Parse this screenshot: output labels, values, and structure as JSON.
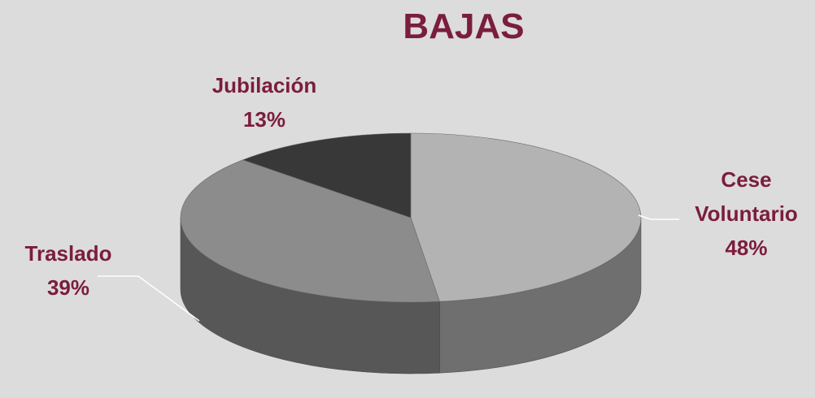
{
  "chart_data": {
    "type": "pie",
    "title": "BAJAS",
    "categories": [
      "Cese Voluntario",
      "Traslado",
      "Jubilación"
    ],
    "values": [
      48,
      39,
      13
    ],
    "value_labels": [
      "48%",
      "39%",
      "13%"
    ],
    "colors": [
      "#b3b3b3",
      "#8c8c8c",
      "#383838"
    ]
  }
}
